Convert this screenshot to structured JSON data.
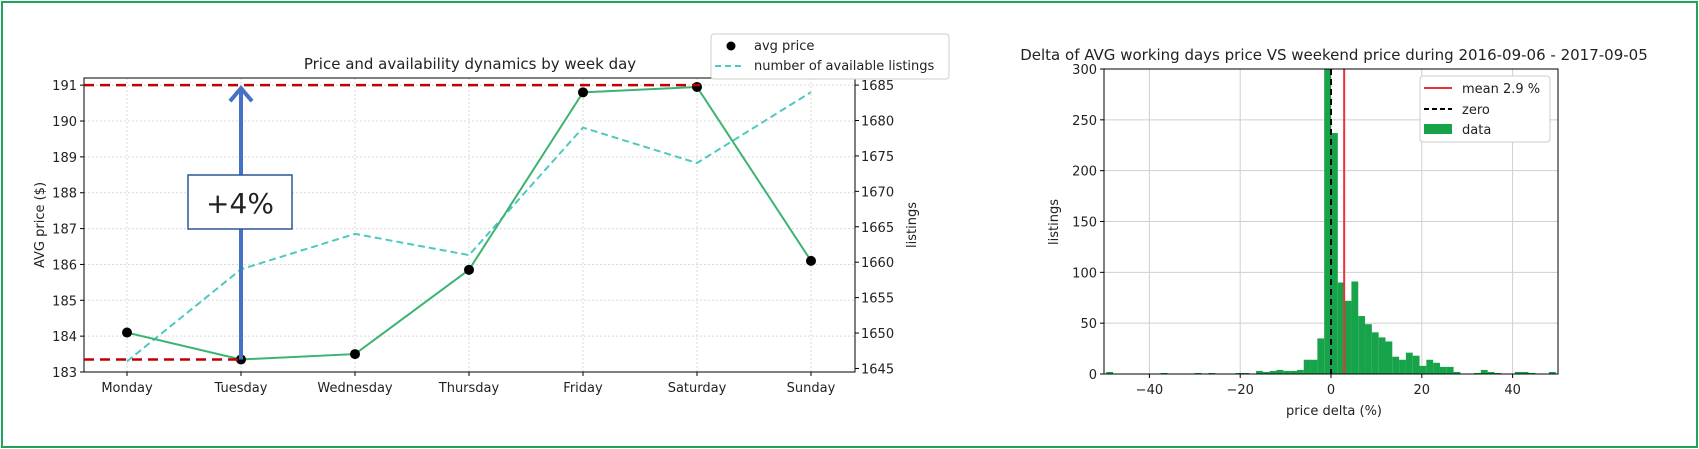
{
  "chart_data": [
    {
      "type": "line",
      "title": "Price and availability dynamics by week day",
      "categories": [
        "Monday",
        "Tuesday",
        "Wednesday",
        "Thursday",
        "Friday",
        "Saturday",
        "Sunday"
      ],
      "ylabel": "AVG price ($)",
      "y2label": "listings",
      "ylim": [
        183,
        191.2
      ],
      "y2lim": [
        1644.5,
        1686
      ],
      "yticks": [
        183,
        184,
        185,
        186,
        187,
        188,
        189,
        190,
        191
      ],
      "y2ticks": [
        1645,
        1650,
        1655,
        1660,
        1665,
        1670,
        1675,
        1680,
        1685
      ],
      "series": [
        {
          "name": "avg price",
          "axis": "left",
          "values": [
            184.1,
            183.35,
            183.5,
            185.85,
            190.8,
            190.95,
            186.1
          ],
          "color": "#3cb371"
        },
        {
          "name": "number of available listings",
          "axis": "right",
          "values": [
            1646,
            1659,
            1664,
            1661,
            1679,
            1674,
            1684
          ],
          "color": "#4ec9c0"
        }
      ],
      "legend_position": "top-right",
      "grid": true,
      "annotation": {
        "label": "+4%",
        "from_value": 183.35,
        "to_value": 191.0,
        "color": "#c00000",
        "arrow_color": "#4472c4"
      }
    },
    {
      "type": "histogram",
      "title": "Delta of AVG working days price VS weekend price during 2016-09-06 - 2017-09-05",
      "xlabel": "price delta (%)",
      "ylabel": "listings",
      "xlim": [
        -50,
        50
      ],
      "ylim": [
        0,
        300
      ],
      "xticks": [
        -40,
        -20,
        0,
        20,
        40
      ],
      "yticks": [
        0,
        50,
        100,
        150,
        200,
        250,
        300
      ],
      "bin_width": 1.5,
      "bins_start": [
        -49.5,
        -37.5,
        -30,
        -27,
        -21,
        -19.5,
        -16.5,
        -15,
        -13.5,
        -12,
        -10.5,
        -9,
        -7.5,
        -6,
        -4.5,
        -3,
        -1.5,
        0,
        1.5,
        3,
        4.5,
        6,
        7.5,
        9,
        10.5,
        12,
        13.5,
        15,
        16.5,
        18,
        19.5,
        21,
        22.5,
        24,
        25.5,
        27,
        31.5,
        33,
        34.5,
        36,
        40.5,
        42,
        43.5,
        48
      ],
      "counts": [
        2,
        1,
        1,
        1,
        1,
        1,
        3,
        2,
        3,
        4,
        3,
        3,
        4,
        14,
        14,
        35,
        300,
        237,
        90,
        72,
        91,
        57,
        49,
        41,
        36,
        32,
        17,
        14,
        21,
        18,
        8,
        14,
        11,
        7,
        7,
        2,
        1,
        4,
        2,
        1,
        2,
        2,
        1,
        2
      ],
      "mean_value": 2.9,
      "legend": [
        "mean 2.9 %",
        "zero",
        "data"
      ],
      "legend_position": "top-right",
      "grid": true,
      "colors": {
        "bars": "#16a34a",
        "mean": "#e8333a",
        "zero": "#000000"
      }
    }
  ]
}
